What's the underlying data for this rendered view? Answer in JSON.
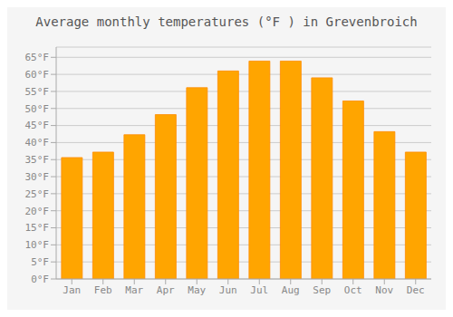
{
  "chart_data": {
    "type": "bar",
    "title": "Average monthly temperatures (°F ) in Grevenbroich",
    "categories": [
      "Jan",
      "Feb",
      "Mar",
      "Apr",
      "May",
      "Jun",
      "Jul",
      "Aug",
      "Sep",
      "Oct",
      "Nov",
      "Dec"
    ],
    "values": [
      35.6,
      37.2,
      42.3,
      48.2,
      56.1,
      61.0,
      63.9,
      63.9,
      59.0,
      52.2,
      43.2,
      37.2
    ],
    "color": "#FFA500",
    "ylim": [
      0,
      68
    ],
    "yticks": [
      {
        "value": 0,
        "label": "0°F"
      },
      {
        "value": 5,
        "label": "5°F"
      },
      {
        "value": 10,
        "label": "10°F"
      },
      {
        "value": 15,
        "label": "15°F"
      },
      {
        "value": 20,
        "label": "20°F"
      },
      {
        "value": 25,
        "label": "25°F"
      },
      {
        "value": 30,
        "label": "30°F"
      },
      {
        "value": 35,
        "label": "35°F"
      },
      {
        "value": 40,
        "label": "40°F"
      },
      {
        "value": 45,
        "label": "45°F"
      },
      {
        "value": 50,
        "label": "50°F"
      },
      {
        "value": 55,
        "label": "55°F"
      },
      {
        "value": 60,
        "label": "60°F"
      },
      {
        "value": 65,
        "label": "65°F"
      }
    ],
    "grid": true
  }
}
